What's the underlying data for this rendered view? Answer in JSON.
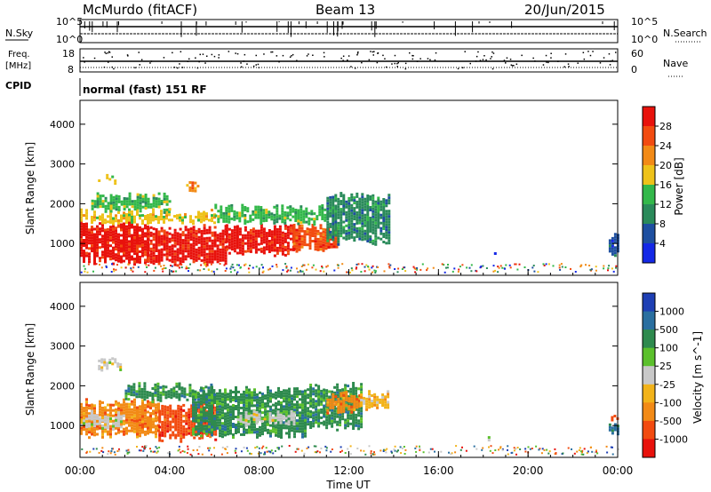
{
  "header": {
    "site": "McMurdo (fitACF)",
    "beam": "Beam 13",
    "date": "20/Jun/2015"
  },
  "strips": {
    "nsky_label": "N.Sky",
    "nsky_ticks": [
      "10^5",
      "10^0"
    ],
    "nsearch_label": "N.Search",
    "nsearch_ticks": [
      "10^5",
      "10^0"
    ],
    "freq_label_1": "Freq.",
    "freq_label_2": "[MHz]",
    "freq_ticks": [
      "18",
      "8"
    ],
    "nave_label": "Nave",
    "nave_ticks": [
      "60",
      "0"
    ],
    "cpid_label": "CPID",
    "cpid_text": "normal (fast) 151 RF"
  },
  "colors": {
    "power": [
      "#1428e6",
      "#1e4fa0",
      "#2a8a5a",
      "#33b84a",
      "#eec21a",
      "#f28a16",
      "#f24b10",
      "#e8120c"
    ],
    "velocity": [
      "#e8120c",
      "#f24b10",
      "#f28a16",
      "#f2b31a",
      "#c8c8c8",
      "#5bc02c",
      "#2e8a4e",
      "#2a6fa0",
      "#1e3fb4"
    ]
  },
  "chart_data": [
    {
      "type": "heatmap",
      "name": "power",
      "xlabel": "",
      "ylabel": "Slant Range [km]",
      "xlim": [
        0,
        24
      ],
      "ylim": [
        200,
        4600
      ],
      "xticks": [
        "00:00",
        "04:00",
        "08:00",
        "12:00",
        "16:00",
        "20:00",
        "00:00"
      ],
      "yticks": [
        1000,
        2000,
        3000,
        4000
      ],
      "colorbar": {
        "label": "Power [dB]",
        "ticks": [
          "4",
          "8",
          "12",
          "16",
          "20",
          "24",
          "28"
        ]
      },
      "regions": [
        {
          "t0": 0.0,
          "t1": 3.0,
          "r0": 500,
          "r1": 1600,
          "level": 7
        },
        {
          "t0": 3.0,
          "t1": 6.5,
          "r0": 450,
          "r1": 1500,
          "level": 7
        },
        {
          "t0": 6.5,
          "t1": 9.5,
          "r0": 700,
          "r1": 1500,
          "level": 7
        },
        {
          "t0": 9.5,
          "t1": 11.5,
          "r0": 800,
          "r1": 1500,
          "level": 6
        },
        {
          "t0": 0.0,
          "t1": 6.0,
          "r0": 1500,
          "r1": 1900,
          "level": 4
        },
        {
          "t0": 6.0,
          "t1": 11.0,
          "r0": 1500,
          "r1": 2000,
          "level": 3
        },
        {
          "t0": 11.0,
          "t1": 13.8,
          "r0": 1000,
          "r1": 2300,
          "level": 2
        },
        {
          "t0": 4.5,
          "t1": 5.3,
          "r0": 2300,
          "r1": 2600,
          "level": 5
        },
        {
          "t0": 0.8,
          "t1": 1.6,
          "r0": 2500,
          "r1": 2800,
          "level": 4
        },
        {
          "t0": 0.5,
          "t1": 4.0,
          "r0": 1800,
          "r1": 2300,
          "level": 3
        },
        {
          "t0": 18.0,
          "t1": 18.7,
          "r0": 650,
          "r1": 800,
          "level": 1
        },
        {
          "t0": 23.6,
          "t1": 24.0,
          "r0": 700,
          "r1": 1300,
          "level": 1
        }
      ]
    },
    {
      "type": "heatmap",
      "name": "velocity",
      "xlabel": "Time UT",
      "ylabel": "Slant Range [km]",
      "xlim": [
        0,
        24
      ],
      "ylim": [
        200,
        4600
      ],
      "xticks": [
        "00:00",
        "04:00",
        "08:00",
        "12:00",
        "16:00",
        "20:00",
        "00:00"
      ],
      "yticks": [
        1000,
        2000,
        3000,
        4000
      ],
      "colorbar": {
        "label": "Velocity [m s^-1]",
        "ticks": [
          "1000",
          "500",
          "100",
          "25",
          "-25",
          "-100",
          "-500",
          "-1000"
        ]
      },
      "regions": [
        {
          "t0": 0.0,
          "t1": 3.5,
          "r0": 700,
          "r1": 1700,
          "level": 2
        },
        {
          "t0": 0.0,
          "t1": 2.0,
          "r0": 900,
          "r1": 1400,
          "level": 4
        },
        {
          "t0": 3.5,
          "t1": 6.0,
          "r0": 600,
          "r1": 1600,
          "level": 1
        },
        {
          "t0": 2.0,
          "t1": 6.0,
          "r0": 1600,
          "r1": 2100,
          "level": 6
        },
        {
          "t0": 5.0,
          "t1": 10.0,
          "r0": 700,
          "r1": 2000,
          "level": 6
        },
        {
          "t0": 7.0,
          "t1": 9.5,
          "r0": 1000,
          "r1": 1400,
          "level": 4
        },
        {
          "t0": 10.0,
          "t1": 12.5,
          "r0": 900,
          "r1": 2100,
          "level": 6
        },
        {
          "t0": 11.0,
          "t1": 12.5,
          "r0": 1300,
          "r1": 1900,
          "level": 2
        },
        {
          "t0": 12.5,
          "t1": 13.8,
          "r0": 1400,
          "r1": 1900,
          "level": 3
        },
        {
          "t0": 0.8,
          "t1": 1.8,
          "r0": 2400,
          "r1": 2800,
          "level": 4
        },
        {
          "t0": 18.2,
          "t1": 18.8,
          "r0": 600,
          "r1": 750,
          "level": 5
        },
        {
          "t0": 23.6,
          "t1": 24.0,
          "r0": 800,
          "r1": 1100,
          "level": 7
        },
        {
          "t0": 23.7,
          "t1": 24.0,
          "r0": 1100,
          "r1": 1400,
          "level": 1
        }
      ]
    }
  ]
}
